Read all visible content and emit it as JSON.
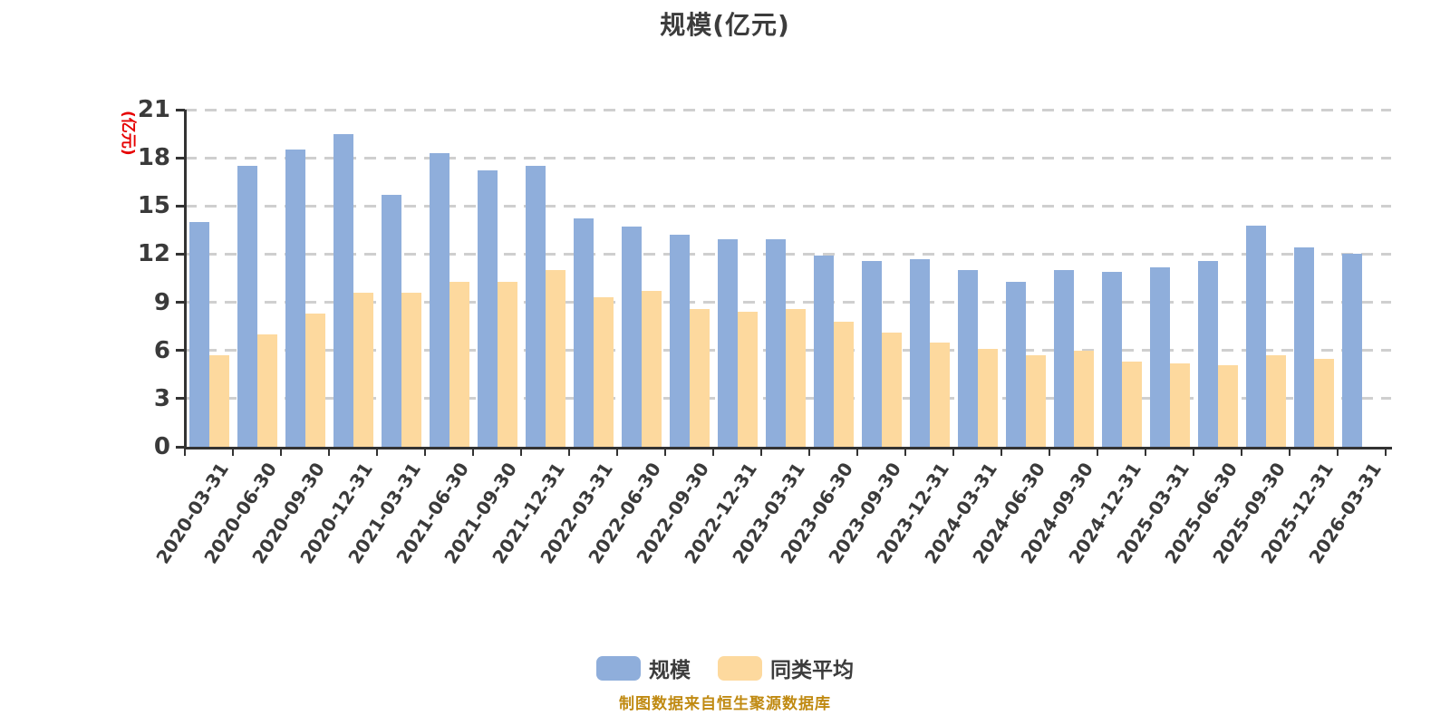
{
  "footer": {
    "text": "制图数据来自恒生聚源数据库",
    "color": "#c08a12"
  },
  "chart_data": {
    "type": "bar",
    "title": "规模(亿元)",
    "ylabel": "(亿元)",
    "ylabel_color": "#e60000",
    "ylim": [
      0,
      21
    ],
    "yticks": [
      0,
      3,
      6,
      9,
      12,
      15,
      18,
      21
    ],
    "grid": "horizontal dashed",
    "legend_position": "bottom",
    "categories": [
      "2020-03-31",
      "2020-06-30",
      "2020-09-30",
      "2020-12-31",
      "2021-03-31",
      "2021-06-30",
      "2021-09-30",
      "2021-12-31",
      "2022-03-31",
      "2022-06-30",
      "2022-09-30",
      "2022-12-31",
      "2023-03-31",
      "2023-06-30",
      "2023-09-30",
      "2023-12-31",
      "2024-03-31",
      "2024-06-30",
      "2024-09-30",
      "2024-12-31",
      "2025-03-31",
      "2025-06-30",
      "2025-09-30",
      "2025-12-31",
      "2026-03-31"
    ],
    "series": [
      {
        "name": "规模",
        "color": "#8faedb",
        "values": [
          14.0,
          17.5,
          18.5,
          19.5,
          15.7,
          18.3,
          17.2,
          17.5,
          14.2,
          13.7,
          13.2,
          12.9,
          12.9,
          11.9,
          11.6,
          11.7,
          11.0,
          10.3,
          11.0,
          10.9,
          11.2,
          11.6,
          13.8,
          12.4,
          12.0
        ]
      },
      {
        "name": "同类平均",
        "color": "#fdd99e",
        "values": [
          5.7,
          7.0,
          8.3,
          9.6,
          9.6,
          10.3,
          10.3,
          11.0,
          9.3,
          9.7,
          8.6,
          8.4,
          8.6,
          7.8,
          7.1,
          6.5,
          6.1,
          5.7,
          6.0,
          5.3,
          5.2,
          5.1,
          5.7,
          5.5,
          null
        ]
      }
    ]
  }
}
